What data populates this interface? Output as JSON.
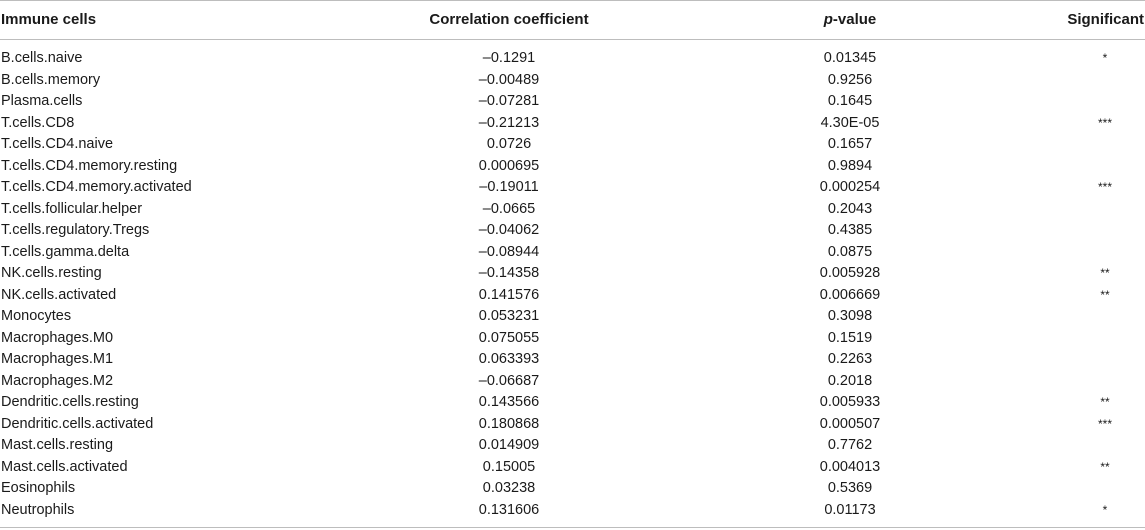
{
  "table": {
    "headers": {
      "cell": "Immune cells",
      "corr": "Correlation coefficient",
      "p_italic": "p",
      "p_rest": "-value",
      "sig": "Significant"
    },
    "rows": [
      {
        "cell": "B.cells.naive",
        "corr": "–0.1291",
        "p": "0.01345",
        "sig": "*"
      },
      {
        "cell": "B.cells.memory",
        "corr": "–0.00489",
        "p": "0.9256",
        "sig": ""
      },
      {
        "cell": "Plasma.cells",
        "corr": "–0.07281",
        "p": "0.1645",
        "sig": ""
      },
      {
        "cell": "T.cells.CD8",
        "corr": "–0.21213",
        "p": "4.30E-05",
        "sig": "***"
      },
      {
        "cell": "T.cells.CD4.naive",
        "corr": "0.0726",
        "p": "0.1657",
        "sig": ""
      },
      {
        "cell": "T.cells.CD4.memory.resting",
        "corr": "0.000695",
        "p": "0.9894",
        "sig": ""
      },
      {
        "cell": "T.cells.CD4.memory.activated",
        "corr": "–0.19011",
        "p": "0.000254",
        "sig": "***"
      },
      {
        "cell": "T.cells.follicular.helper",
        "corr": "–0.0665",
        "p": "0.2043",
        "sig": ""
      },
      {
        "cell": "T.cells.regulatory.Tregs",
        "corr": "–0.04062",
        "p": "0.4385",
        "sig": ""
      },
      {
        "cell": "T.cells.gamma.delta",
        "corr": "–0.08944",
        "p": "0.0875",
        "sig": ""
      },
      {
        "cell": "NK.cells.resting",
        "corr": "–0.14358",
        "p": "0.005928",
        "sig": "**"
      },
      {
        "cell": "NK.cells.activated",
        "corr": "0.141576",
        "p": "0.006669",
        "sig": "**"
      },
      {
        "cell": "Monocytes",
        "corr": "0.053231",
        "p": "0.3098",
        "sig": ""
      },
      {
        "cell": "Macrophages.M0",
        "corr": "0.075055",
        "p": "0.1519",
        "sig": ""
      },
      {
        "cell": "Macrophages.M1",
        "corr": "0.063393",
        "p": "0.2263",
        "sig": ""
      },
      {
        "cell": "Macrophages.M2",
        "corr": "–0.06687",
        "p": "0.2018",
        "sig": ""
      },
      {
        "cell": "Dendritic.cells.resting",
        "corr": "0.143566",
        "p": "0.005933",
        "sig": "**"
      },
      {
        "cell": "Dendritic.cells.activated",
        "corr": "0.180868",
        "p": "0.000507",
        "sig": "***"
      },
      {
        "cell": "Mast.cells.resting",
        "corr": "0.014909",
        "p": "0.7762",
        "sig": ""
      },
      {
        "cell": "Mast.cells.activated",
        "corr": "0.15005",
        "p": "0.004013",
        "sig": "**"
      },
      {
        "cell": "Eosinophils",
        "corr": "0.03238",
        "p": "0.5369",
        "sig": ""
      },
      {
        "cell": "Neutrophils",
        "corr": "0.131606",
        "p": "0.01173",
        "sig": "*"
      }
    ]
  }
}
